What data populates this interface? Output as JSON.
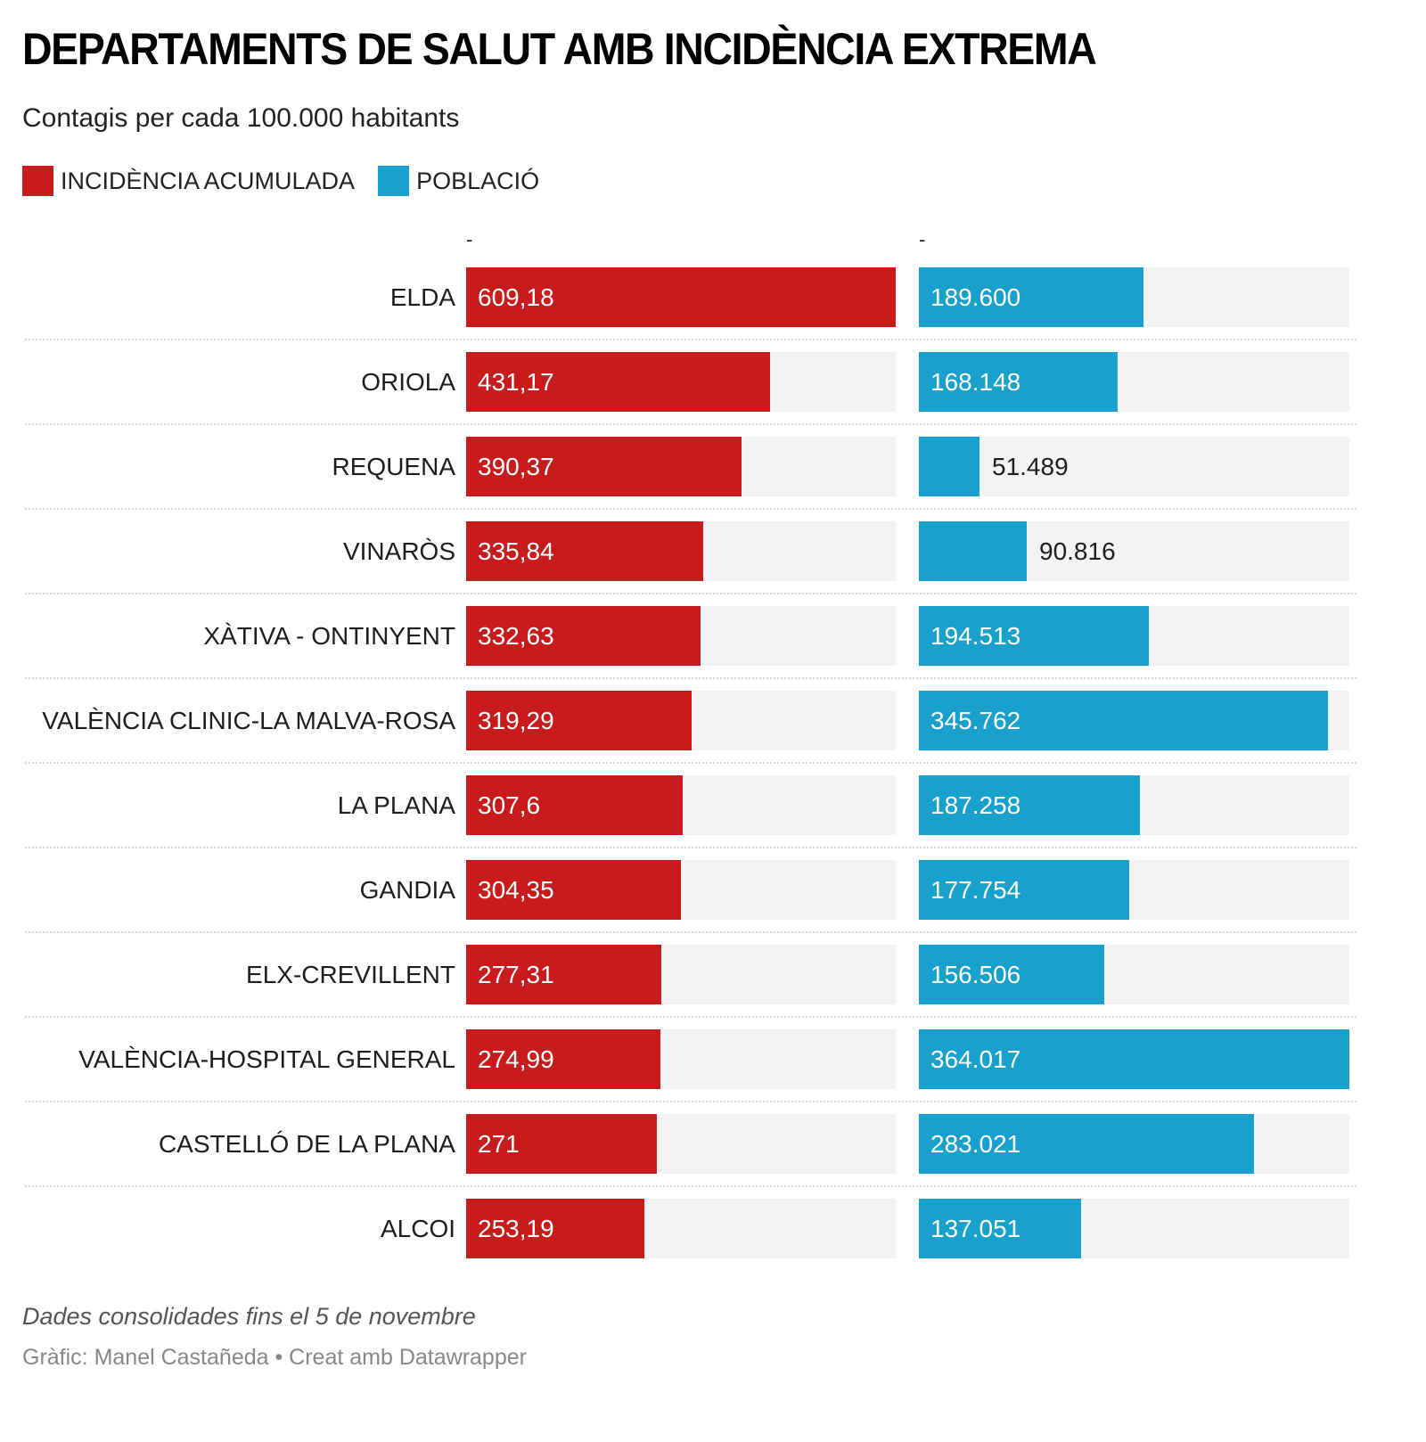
{
  "header": {
    "title": "DEPARTAMENTS DE SALUT AMB INCIDÈNCIA EXTREMA",
    "subtitle": "Contagis per cada 100.000 habitants"
  },
  "legend": [
    {
      "label": "INCIDÈNCIA ACUMULADA",
      "color": "#c71b1c"
    },
    {
      "label": "POBLACIÓ",
      "color": "#18a1cd"
    }
  ],
  "columns": {
    "incidence_header": "-",
    "population_header": "-"
  },
  "colors": {
    "incidence": "#c71b1c",
    "population": "#18a1cd",
    "track": "#f3f3f3"
  },
  "chart_data": {
    "type": "bar",
    "orientation": "horizontal",
    "title": "DEPARTAMENTS DE SALUT AMB INCIDÈNCIA EXTREMA",
    "subtitle": "Contagis per cada 100.000 habitants",
    "categories": [
      "ELDA",
      "ORIOLA",
      "REQUENA",
      "VINARÒS",
      "XÀTIVA - ONTINYENT",
      "VALÈNCIA CLINIC-LA MALVA-ROSA",
      "LA PLANA",
      "GANDIA",
      "ELX-CREVILLENT",
      "VALÈNCIA-HOSPITAL GENERAL",
      "CASTELLÓ DE LA PLANA",
      "ALCOI"
    ],
    "series": [
      {
        "name": "INCIDÈNCIA ACUMULADA",
        "values": [
          609.18,
          431.17,
          390.37,
          335.84,
          332.63,
          319.29,
          307.6,
          304.35,
          277.31,
          274.99,
          271,
          253.19
        ],
        "labels": [
          "609,18",
          "431,17",
          "390,37",
          "335,84",
          "332,63",
          "319,29",
          "307,6",
          "304,35",
          "277,31",
          "274,99",
          "271",
          "253,19"
        ],
        "max": 609.18
      },
      {
        "name": "POBLACIÓ",
        "values": [
          189600,
          168148,
          51489,
          90816,
          194513,
          345762,
          187258,
          177754,
          156506,
          364017,
          283021,
          137051
        ],
        "labels": [
          "189.600",
          "168.148",
          "51.489",
          "90.816",
          "194.513",
          "345.762",
          "187.258",
          "177.754",
          "156.506",
          "364.017",
          "283.021",
          "137.051"
        ],
        "max": 364017
      }
    ],
    "legend_position": "top-left",
    "grid": false
  },
  "footer": {
    "notes": "Dades consolidades fins el 5 de novembre",
    "byline": "Gràfic: Manel Castañeda • Creat amb Datawrapper"
  }
}
